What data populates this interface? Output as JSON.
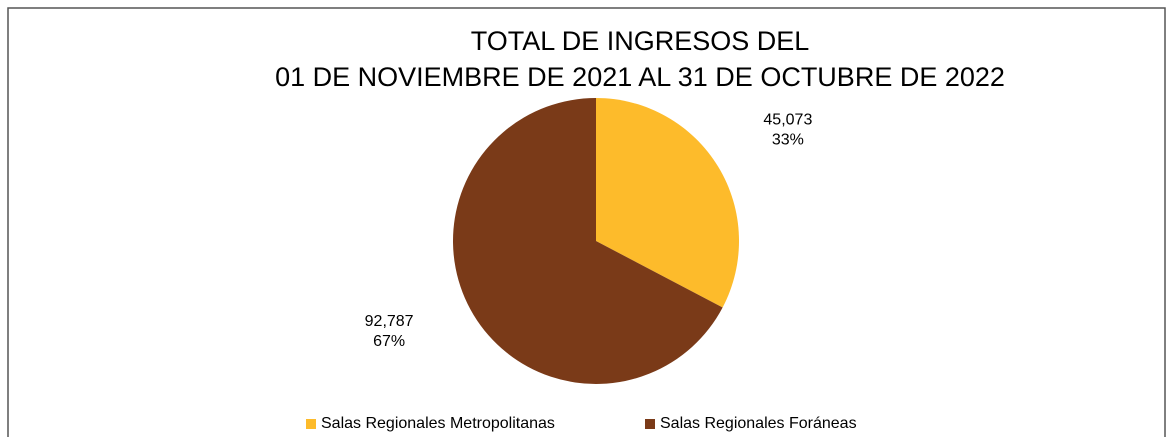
{
  "chart_data": {
    "type": "pie",
    "title": [
      "TOTAL DE INGRESOS DEL",
      "01 DE NOVIEMBRE DE 2021 AL 31 DE OCTUBRE DE 2022"
    ],
    "categories": [
      "Salas Regionales Metropolitanas",
      "Salas Regionales Foráneas"
    ],
    "values": [
      45073,
      92787
    ],
    "value_labels": [
      "45,073",
      "92,787"
    ],
    "percent_labels": [
      "33%",
      "67%"
    ],
    "colors": [
      "#fdbb2b",
      "#7a3a18"
    ],
    "legend": "bottom"
  }
}
